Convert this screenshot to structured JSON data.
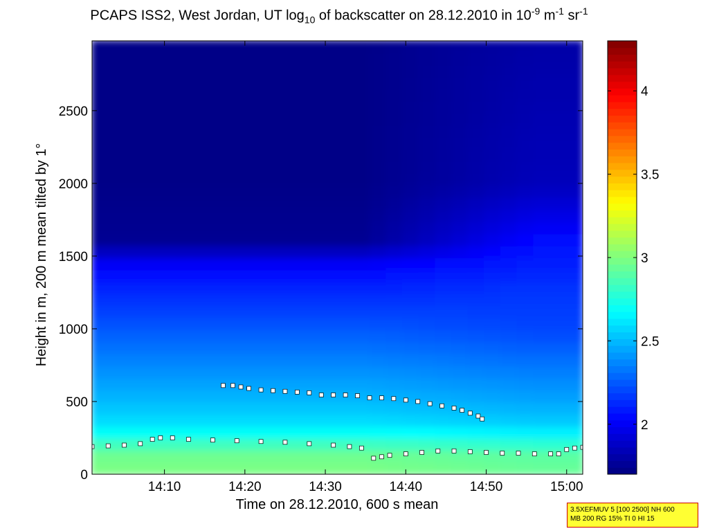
{
  "chart_data": {
    "type": "heatmap",
    "title_parts": {
      "a": "PCAPS ISS2, West Jordan, UT log",
      "sub": "10",
      "b": " of backscatter on 28.12.2010 in 10",
      "sup1": "-9",
      "c": " m",
      "sup2": "-1",
      "d": " sr",
      "sup3": "-1"
    },
    "xlabel": "Time on 28.12.2010, 600 s mean",
    "ylabel": "Height in m, 200 m mean tilted by 1°",
    "x_range_minutes_of_day": [
      841,
      902
    ],
    "xlim_labels": [
      "14:01",
      "15:02"
    ],
    "ylim": [
      0,
      2980
    ],
    "x_ticks": [
      {
        "label": "14:10",
        "minute": 850
      },
      {
        "label": "14:20",
        "minute": 860
      },
      {
        "label": "14:30",
        "minute": 870
      },
      {
        "label": "14:40",
        "minute": 880
      },
      {
        "label": "14:50",
        "minute": 890
      },
      {
        "label": "15:00",
        "minute": 900
      }
    ],
    "y_ticks": [
      0,
      500,
      1000,
      1500,
      2000,
      2500
    ],
    "colorbar": {
      "range": [
        1.7,
        4.3
      ],
      "ticks": [
        2,
        2.5,
        3,
        3.5,
        4
      ],
      "tick_labels": [
        "2",
        "2.5",
        "3",
        "3.5",
        "4"
      ],
      "colormap": "jet"
    },
    "backscatter_profile": {
      "heights": [
        0,
        150,
        250,
        350,
        500,
        700,
        1000,
        1300,
        1450,
        1600,
        2000,
        2980
      ],
      "values_early": [
        3.0,
        2.95,
        2.75,
        2.6,
        2.5,
        2.4,
        2.25,
        2.1,
        2.0,
        1.75,
        1.72,
        1.72
      ],
      "values_late": [
        2.95,
        2.9,
        2.7,
        2.55,
        2.45,
        2.35,
        2.2,
        2.15,
        2.1,
        2.05,
        1.85,
        1.8
      ]
    },
    "series": [
      {
        "marker": "square",
        "x": [
          841.0,
          843.0,
          845.0,
          847.0,
          848.5,
          849.5,
          851.0,
          853.0,
          856.0,
          859.0,
          862.0,
          865.0,
          868.0,
          871.0,
          873.0,
          874.5
        ],
        "y": [
          190,
          195,
          200,
          210,
          240,
          250,
          250,
          240,
          235,
          230,
          225,
          220,
          210,
          200,
          190,
          180
        ]
      },
      {
        "marker": "square",
        "x": [
          876.0,
          877.0,
          878.0,
          880.0,
          882.0,
          884.0,
          886.0,
          888.0,
          890.0,
          892.0,
          894.0,
          896.0,
          898.0,
          899.0,
          900.0,
          901.0,
          902.0
        ],
        "y": [
          110,
          120,
          130,
          140,
          150,
          160,
          160,
          155,
          150,
          145,
          145,
          140,
          140,
          140,
          170,
          180,
          185
        ]
      },
      {
        "marker": "square",
        "x": [
          857.3
        ],
        "y": [
          610
        ]
      },
      {
        "marker": "square",
        "x": [
          858.5,
          859.5,
          860.5,
          862.0,
          863.5,
          865.0,
          866.5,
          868.0,
          869.5,
          871.0,
          872.5,
          874.0,
          875.5,
          877.0,
          878.5,
          880.0,
          881.5,
          883.0,
          884.5,
          886.0,
          887.0,
          888.0,
          889.0,
          889.5
        ],
        "y": [
          610,
          600,
          590,
          580,
          575,
          570,
          565,
          560,
          545,
          545,
          545,
          540,
          525,
          525,
          520,
          510,
          500,
          485,
          470,
          455,
          440,
          420,
          400,
          380
        ]
      }
    ]
  },
  "info_box": {
    "line1": "3.5XEFMUV 5 [100 2500] NH 600",
    "line2": "MB 200 RG 15% TI 0 HI 15"
  }
}
